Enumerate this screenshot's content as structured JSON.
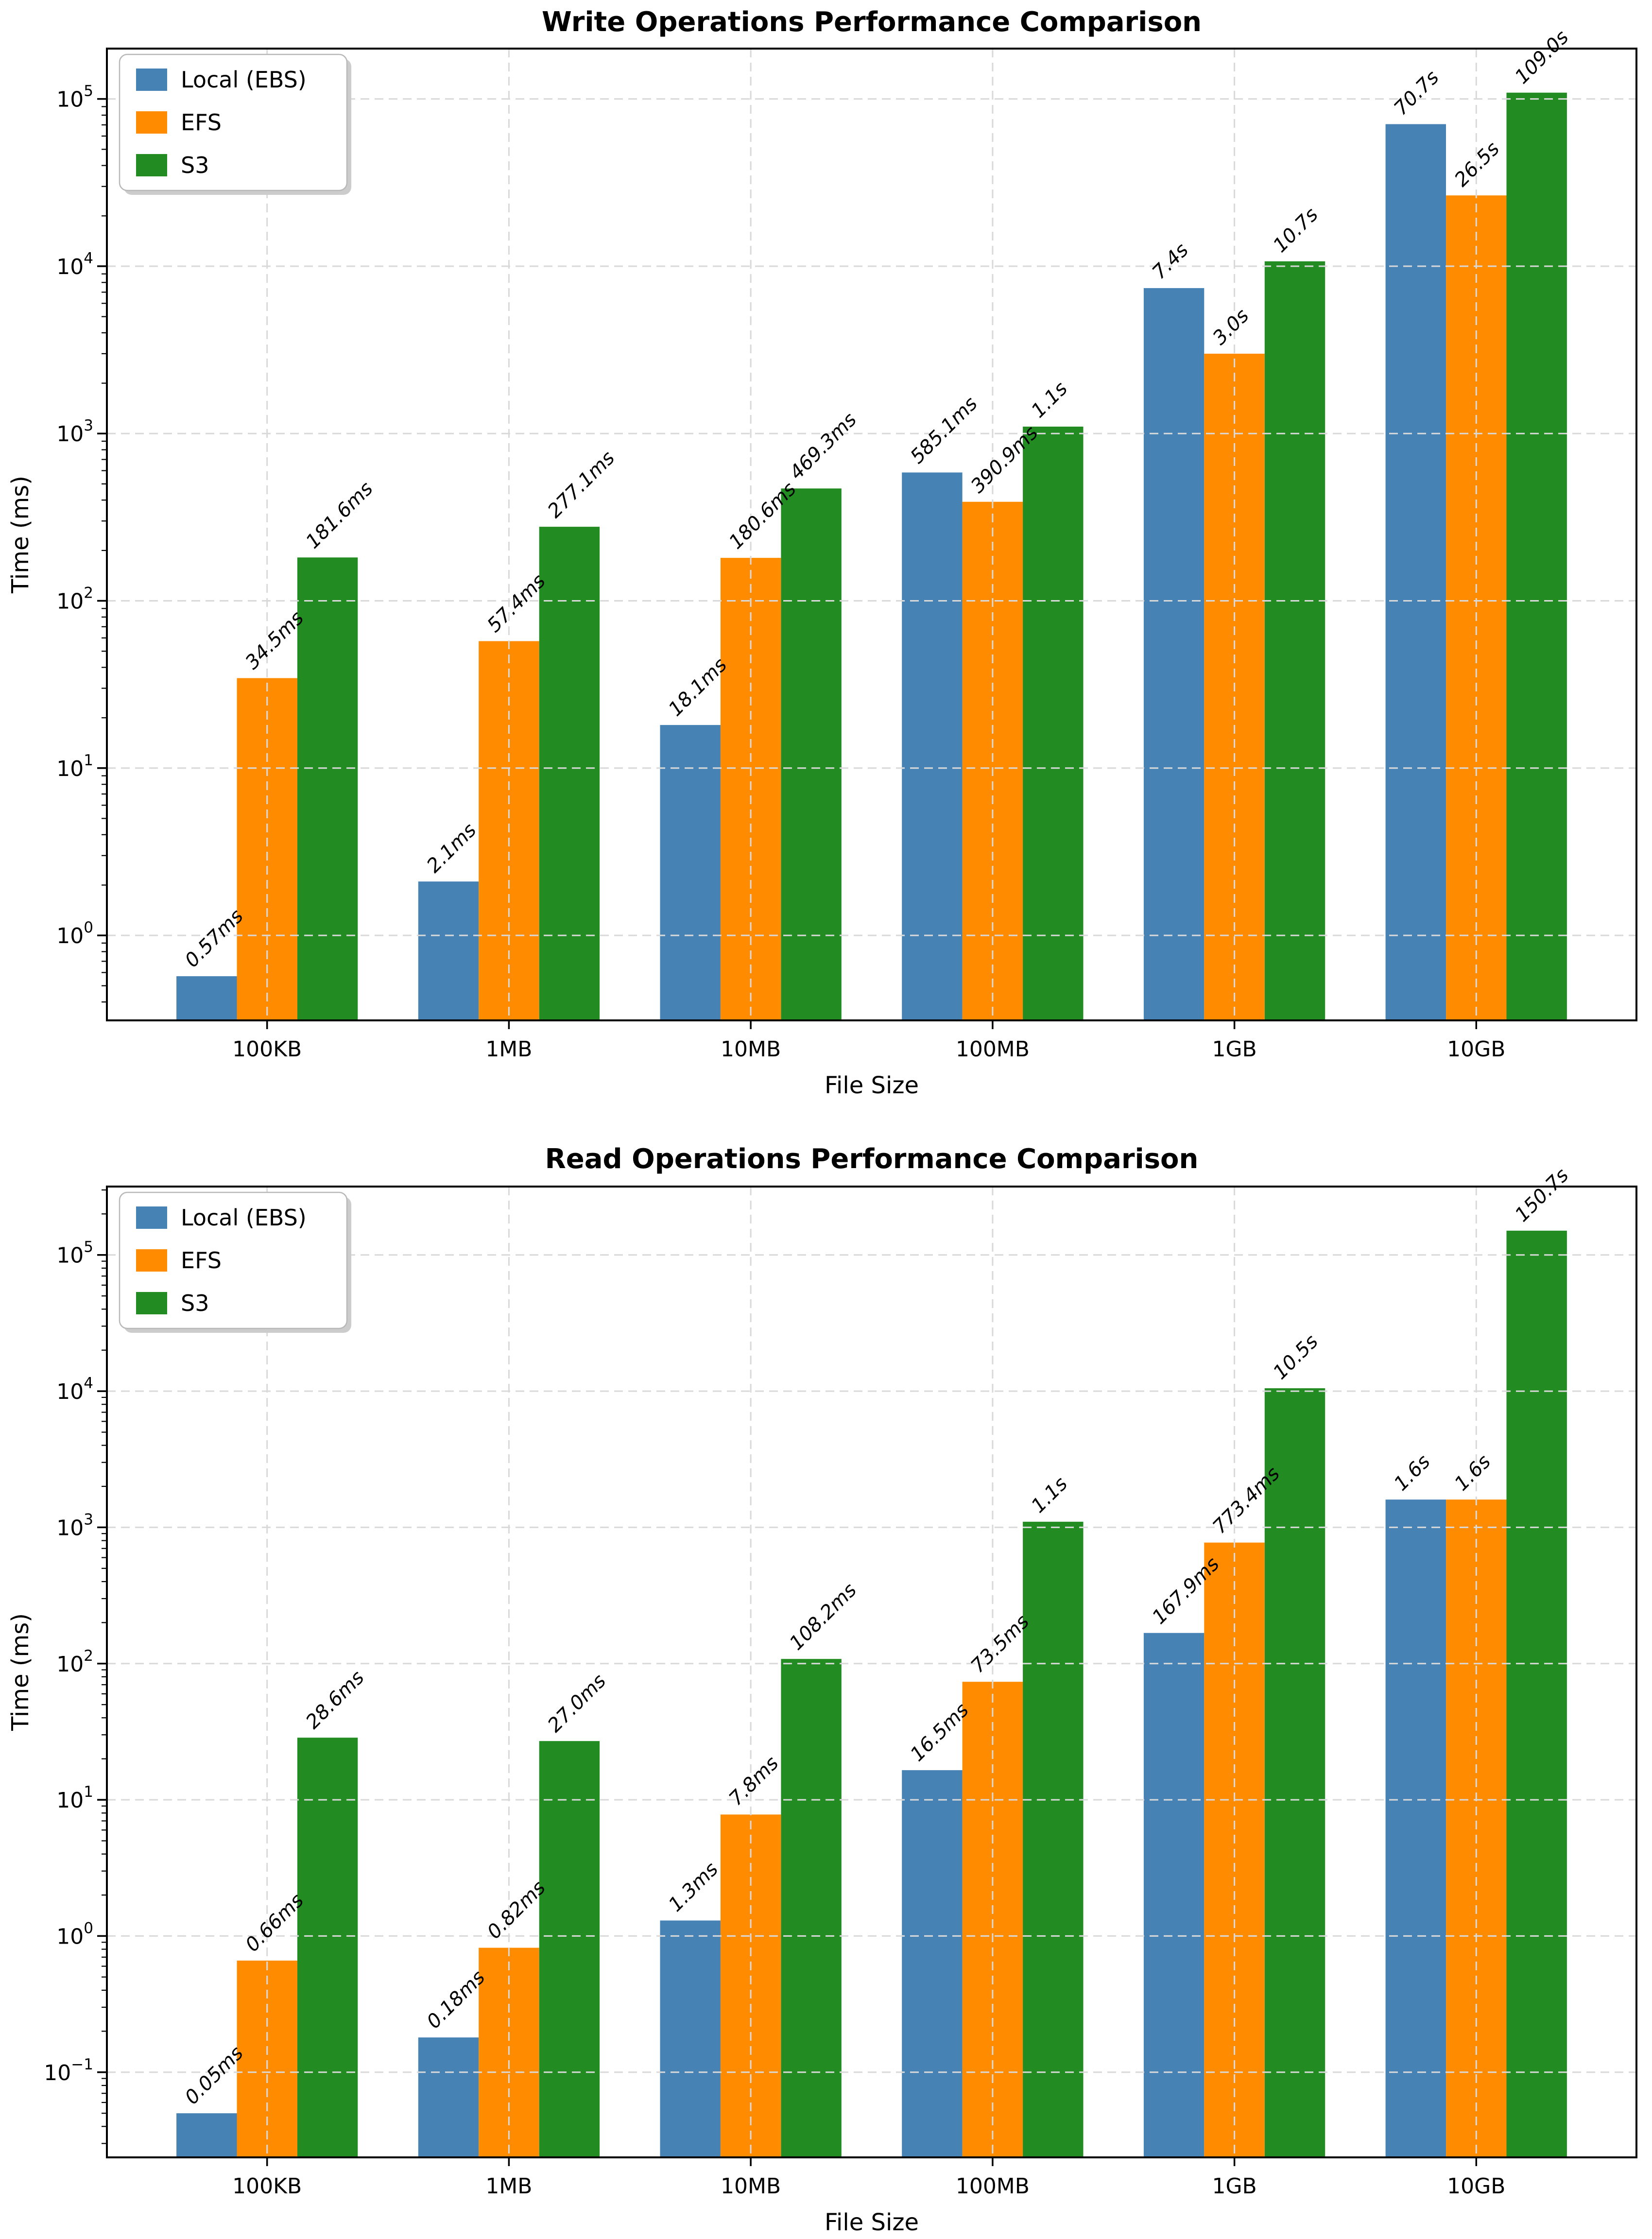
{
  "figure": {
    "background": "#ffffff",
    "grid_color": "#d9d9d9",
    "axis_color": "#000000",
    "legend_border_color": "#b8b8b8",
    "legend_shadow_color": "#cccccc"
  },
  "chart_data": [
    {
      "type": "bar",
      "title": "Write Operations Performance Comparison",
      "xlabel": "File Size",
      "ylabel": "Time (ms)",
      "yscale": "log",
      "grid": true,
      "legend_position": "upper-left",
      "ylim_log10": [
        -0.508,
        5.301
      ],
      "ytick_exponents": [
        0,
        1,
        2,
        3,
        4,
        5
      ],
      "categories": [
        "100KB",
        "1MB",
        "10MB",
        "100MB",
        "1GB",
        "10GB"
      ],
      "series": [
        {
          "name": "Local (EBS)",
          "color": "#4682B4",
          "values_ms": [
            0.57,
            2.1,
            18.1,
            585.1,
            7400,
            70700
          ],
          "labels": [
            "0.57ms",
            "2.1ms",
            "18.1ms",
            "585.1ms",
            "7.4s",
            "70.7s"
          ]
        },
        {
          "name": "EFS",
          "color": "#FF8C00",
          "values_ms": [
            34.5,
            57.4,
            180.6,
            390.9,
            3000,
            26500
          ],
          "labels": [
            "34.5ms",
            "57.4ms",
            "180.6ms",
            "390.9ms",
            "3.0s",
            "26.5s"
          ]
        },
        {
          "name": "S3",
          "color": "#228B22",
          "values_ms": [
            181.6,
            277.1,
            469.3,
            1100,
            10700,
            109000
          ],
          "labels": [
            "181.6ms",
            "277.1ms",
            "469.3ms",
            "1.1s",
            "10.7s",
            "109.0s"
          ]
        }
      ]
    },
    {
      "type": "bar",
      "title": "Read Operations Performance Comparison",
      "xlabel": "File Size",
      "ylabel": "Time (ms)",
      "yscale": "log",
      "grid": true,
      "legend_position": "upper-left",
      "ylim_log10": [
        -1.625,
        5.502
      ],
      "ytick_exponents": [
        -1,
        0,
        1,
        2,
        3,
        4,
        5
      ],
      "categories": [
        "100KB",
        "1MB",
        "10MB",
        "100MB",
        "1GB",
        "10GB"
      ],
      "series": [
        {
          "name": "Local (EBS)",
          "color": "#4682B4",
          "values_ms": [
            0.05,
            0.18,
            1.3,
            16.5,
            167.9,
            1600
          ],
          "labels": [
            "0.05ms",
            "0.18ms",
            "1.3ms",
            "16.5ms",
            "167.9ms",
            "1.6s"
          ]
        },
        {
          "name": "EFS",
          "color": "#FF8C00",
          "values_ms": [
            0.66,
            0.82,
            7.8,
            73.5,
            773.4,
            1600
          ],
          "labels": [
            "0.66ms",
            "0.82ms",
            "7.8ms",
            "73.5ms",
            "773.4ms",
            "1.6s"
          ]
        },
        {
          "name": "S3",
          "color": "#228B22",
          "values_ms": [
            28.6,
            27.0,
            108.2,
            1100,
            10500,
            150700
          ],
          "labels": [
            "28.6ms",
            "27.0ms",
            "108.2ms",
            "1.1s",
            "10.5s",
            "150.7s"
          ]
        }
      ]
    }
  ]
}
